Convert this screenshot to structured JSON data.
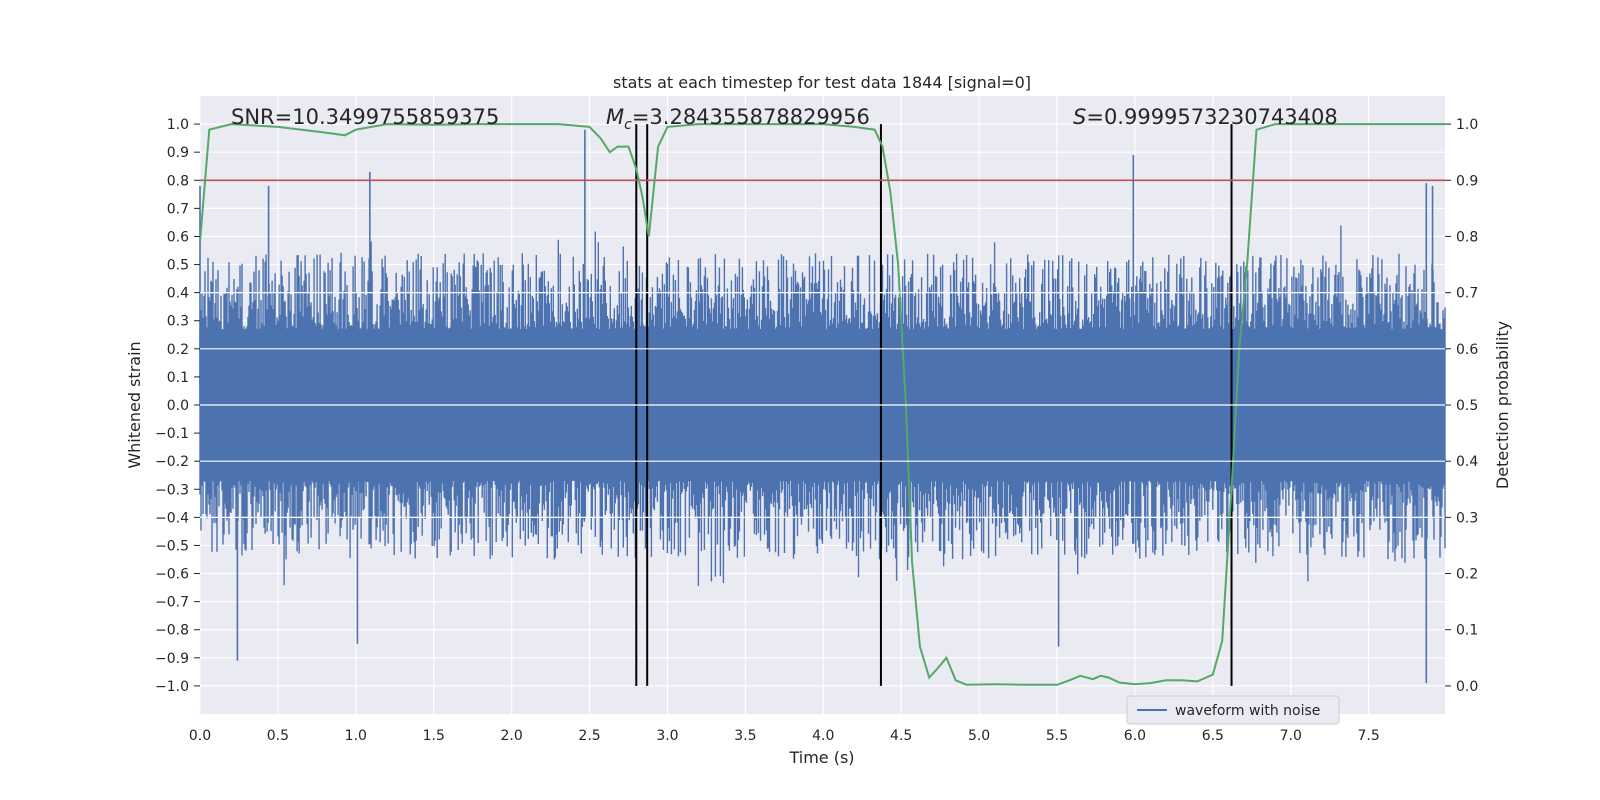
{
  "chart_data": {
    "type": "line",
    "title": "stats at each timestep for test data 1844 [signal=0]",
    "xlabel": "Time (s)",
    "ylabel": "Whitened strain",
    "y2label": "Detection probability",
    "xlim": [
      0.0,
      7.99
    ],
    "ylim": [
      -1.1,
      1.1
    ],
    "y2lim": [
      -0.05,
      1.05
    ],
    "xticks": [
      "0.0",
      "0.5",
      "1.0",
      "1.5",
      "2.0",
      "2.5",
      "3.0",
      "3.5",
      "4.0",
      "4.5",
      "5.0",
      "5.5",
      "6.0",
      "6.5",
      "7.0",
      "7.5"
    ],
    "yticks": [
      "−1.0",
      "−0.9",
      "−0.8",
      "−0.7",
      "−0.6",
      "−0.5",
      "−0.4",
      "−0.3",
      "−0.2",
      "−0.1",
      "0.0",
      "0.1",
      "0.2",
      "0.3",
      "0.4",
      "0.5",
      "0.6",
      "0.7",
      "0.8",
      "0.9",
      "1.0"
    ],
    "y2ticks": [
      "0.0",
      "0.1",
      "0.2",
      "0.3",
      "0.4",
      "0.5",
      "0.6",
      "0.7",
      "0.8",
      "0.9",
      "1.0"
    ],
    "grid": true,
    "annotations": {
      "snr": "SNR=10.3499755859375",
      "mc_symbol": "M",
      "mc_sub": "c",
      "mc_value": "=3.284355878829956",
      "s_symbol": "S",
      "s_value": "=0.9999573230743408"
    },
    "legend": {
      "label": "waveform with noise",
      "position": "lower-right"
    },
    "threshold": {
      "value": 0.9,
      "axis": "y2",
      "color": "#c44e52"
    },
    "vertical_lines": [
      2.8,
      2.87,
      4.37,
      6.62
    ],
    "series": [
      {
        "name": "waveform with noise",
        "color": "#4c72b0",
        "notable_spikes": [
          {
            "x": 0.0,
            "y": 0.78
          },
          {
            "x": 0.24,
            "y": -0.91
          },
          {
            "x": 0.44,
            "y": 0.78
          },
          {
            "x": 1.01,
            "y": -0.85
          },
          {
            "x": 1.09,
            "y": 0.83
          },
          {
            "x": 2.47,
            "y": 0.98
          },
          {
            "x": 5.51,
            "y": -0.86
          },
          {
            "x": 5.99,
            "y": 0.89
          },
          {
            "x": 7.87,
            "y": 0.79
          },
          {
            "x": 7.87,
            "y": -0.99
          },
          {
            "x": 7.91,
            "y": 0.78
          }
        ]
      },
      {
        "name": "detection probability",
        "axis": "y2",
        "color": "#55a868",
        "x": [
          0.0,
          0.06,
          0.2,
          0.5,
          0.8,
          0.93,
          1.0,
          1.2,
          1.5,
          1.8,
          2.0,
          2.3,
          2.5,
          2.57,
          2.63,
          2.68,
          2.75,
          2.8,
          2.84,
          2.88,
          2.94,
          3.0,
          3.2,
          3.5,
          3.8,
          4.0,
          4.2,
          4.33,
          4.38,
          4.43,
          4.48,
          4.53,
          4.57,
          4.62,
          4.68,
          4.73,
          4.79,
          4.85,
          4.92,
          5.1,
          5.3,
          5.5,
          5.58,
          5.65,
          5.73,
          5.78,
          5.83,
          5.9,
          6.0,
          6.1,
          6.2,
          6.3,
          6.4,
          6.5,
          6.56,
          6.62,
          6.67,
          6.72,
          6.78,
          6.9,
          7.1,
          7.5,
          7.99
        ],
        "values": [
          0.79,
          0.99,
          1.0,
          0.995,
          0.985,
          0.98,
          0.99,
          1.0,
          0.999,
          1.0,
          1.0,
          1.0,
          0.995,
          0.975,
          0.95,
          0.96,
          0.96,
          0.92,
          0.87,
          0.8,
          0.96,
          0.995,
          1.0,
          1.0,
          1.0,
          1.0,
          0.995,
          0.99,
          0.96,
          0.88,
          0.75,
          0.5,
          0.22,
          0.07,
          0.015,
          0.03,
          0.05,
          0.01,
          0.002,
          0.003,
          0.002,
          0.002,
          0.01,
          0.018,
          0.012,
          0.018,
          0.015,
          0.006,
          0.003,
          0.005,
          0.01,
          0.01,
          0.008,
          0.02,
          0.08,
          0.35,
          0.6,
          0.75,
          0.99,
          1.0,
          1.0,
          1.0,
          1.0
        ]
      }
    ]
  }
}
